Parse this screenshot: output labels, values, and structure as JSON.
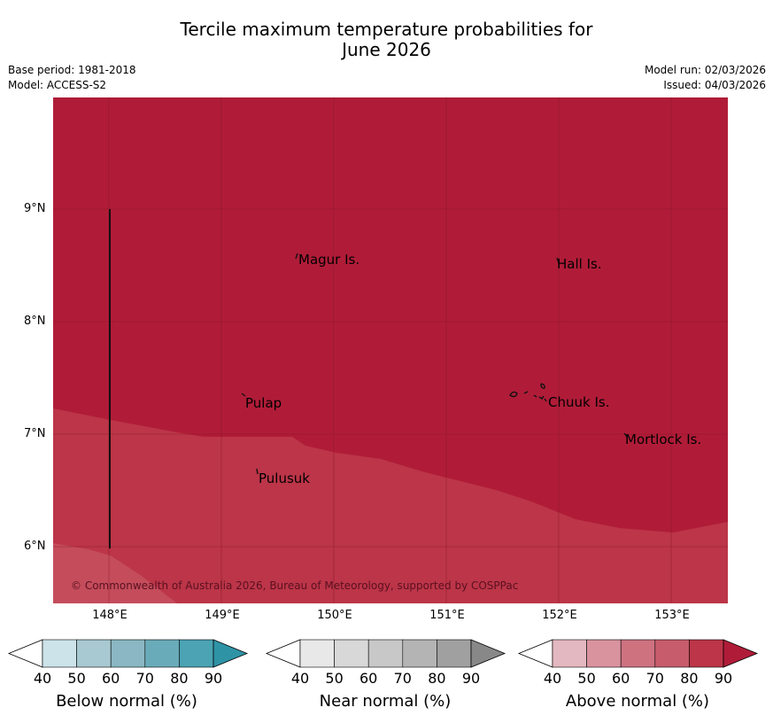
{
  "title_line1": "Tercile maximum temperature probabilities for",
  "title_line2": "June 2026",
  "meta": {
    "base_period": "Base period: 1981-2018",
    "model": "Model: ACCESS-S2",
    "model_run": "Model run: 02/03/2026",
    "issued": "Issued: 04/03/2026"
  },
  "colors": {
    "above_80": "#b01c38",
    "above_70": "#bc3548",
    "grid": "#7a1020"
  },
  "lat_labels": [
    "9°N",
    "8°N",
    "7°N",
    "6°N"
  ],
  "lon_labels": [
    "148°E",
    "149°E",
    "150°E",
    "151°E",
    "152°E",
    "153°E"
  ],
  "places": [
    "Magur Is.",
    "Hall Is.",
    "Pulap",
    "Chuuk Is.",
    "Mortlock Is.",
    "Pulusuk"
  ],
  "copyright": "© Commonwealth of Australia 2026, Bureau of Meteorology, supported by COSPPac",
  "colorbars": [
    {
      "label": "Below normal (%)",
      "ticks": [
        "40",
        "50",
        "60",
        "70",
        "80",
        "90"
      ],
      "colors": [
        "#ffffff",
        "#cce3ea",
        "#a8c9d1",
        "#8ab7c3",
        "#6aabb9",
        "#4ba3b3",
        "#2f93a6"
      ]
    },
    {
      "label": "Near normal (%)",
      "ticks": [
        "40",
        "50",
        "60",
        "70",
        "80",
        "90"
      ],
      "colors": [
        "#ffffff",
        "#e8e8e8",
        "#d8d8d8",
        "#c8c8c8",
        "#b4b4b4",
        "#a0a0a0",
        "#888888"
      ]
    },
    {
      "label": "Above normal (%)",
      "ticks": [
        "40",
        "50",
        "60",
        "70",
        "80",
        "90"
      ],
      "colors": [
        "#ffffff",
        "#e4b8c0",
        "#d9939f",
        "#ce7280",
        "#c75c6c",
        "#bc3548",
        "#b01c38"
      ]
    }
  ]
}
